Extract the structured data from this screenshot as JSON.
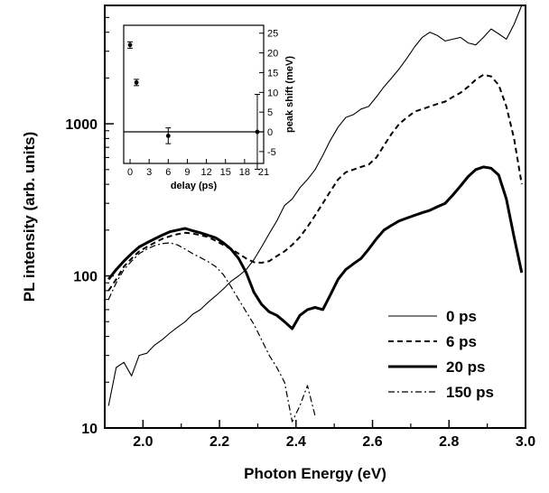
{
  "chart_data": [
    {
      "type": "line",
      "title": "",
      "xlabel": "Photon Energy (eV)",
      "ylabel": "PL intensity (arb. units)",
      "xlim": [
        1.9,
        3.0
      ],
      "ylim": [
        10,
        6000
      ],
      "yscale": "log",
      "xticks": [
        "2.0",
        "2.2",
        "2.4",
        "2.6",
        "2.8",
        "3.0"
      ],
      "yticks": [
        "10",
        "100",
        "1000"
      ],
      "legend_position": "bottom-right",
      "series": [
        {
          "name": "0 ps",
          "style": "thin-solid",
          "x": [
            1.91,
            1.93,
            1.95,
            1.97,
            1.99,
            2.01,
            2.03,
            2.05,
            2.07,
            2.09,
            2.11,
            2.13,
            2.15,
            2.17,
            2.19,
            2.21,
            2.23,
            2.25,
            2.27,
            2.29,
            2.31,
            2.33,
            2.35,
            2.37,
            2.39,
            2.41,
            2.43,
            2.45,
            2.47,
            2.49,
            2.51,
            2.53,
            2.55,
            2.57,
            2.59,
            2.61,
            2.63,
            2.65,
            2.67,
            2.69,
            2.71,
            2.73,
            2.75,
            2.77,
            2.79,
            2.81,
            2.83,
            2.85,
            2.87,
            2.89,
            2.91,
            2.93,
            2.95,
            2.97,
            2.99
          ],
          "y": [
            14,
            25,
            27,
            22,
            30,
            31,
            35,
            38,
            42,
            46,
            50,
            56,
            60,
            67,
            74,
            82,
            92,
            100,
            110,
            128,
            155,
            190,
            230,
            290,
            320,
            380,
            430,
            500,
            620,
            780,
            950,
            1100,
            1150,
            1250,
            1300,
            1500,
            1750,
            2000,
            2300,
            2700,
            3200,
            3700,
            4000,
            3800,
            3500,
            3600,
            3700,
            3400,
            3300,
            3700,
            4200,
            3900,
            3600,
            4500,
            6000
          ]
        },
        {
          "name": "6 ps",
          "style": "dashed",
          "x": [
            1.91,
            1.93,
            1.95,
            1.97,
            1.99,
            2.01,
            2.03,
            2.05,
            2.07,
            2.09,
            2.11,
            2.13,
            2.15,
            2.17,
            2.19,
            2.21,
            2.23,
            2.25,
            2.27,
            2.29,
            2.31,
            2.33,
            2.35,
            2.37,
            2.39,
            2.41,
            2.43,
            2.45,
            2.47,
            2.49,
            2.51,
            2.53,
            2.55,
            2.57,
            2.59,
            2.61,
            2.63,
            2.65,
            2.67,
            2.69,
            2.71,
            2.73,
            2.75,
            2.77,
            2.79,
            2.81,
            2.83,
            2.85,
            2.87,
            2.89,
            2.91,
            2.93,
            2.95,
            2.97,
            2.99
          ],
          "y": [
            80,
            95,
            115,
            130,
            145,
            155,
            165,
            175,
            182,
            188,
            192,
            190,
            185,
            180,
            170,
            160,
            150,
            140,
            130,
            123,
            122,
            125,
            135,
            145,
            160,
            180,
            210,
            250,
            300,
            360,
            430,
            480,
            500,
            520,
            540,
            600,
            720,
            860,
            1000,
            1100,
            1200,
            1250,
            1300,
            1350,
            1400,
            1500,
            1600,
            1750,
            1950,
            2100,
            2050,
            1800,
            1300,
            800,
            400
          ]
        },
        {
          "name": "20 ps",
          "style": "thick-solid",
          "x": [
            1.91,
            1.93,
            1.95,
            1.97,
            1.99,
            2.01,
            2.03,
            2.05,
            2.07,
            2.09,
            2.11,
            2.13,
            2.15,
            2.17,
            2.19,
            2.21,
            2.23,
            2.25,
            2.27,
            2.29,
            2.31,
            2.33,
            2.35,
            2.37,
            2.39,
            2.41,
            2.43,
            2.45,
            2.47,
            2.49,
            2.51,
            2.53,
            2.55,
            2.57,
            2.59,
            2.61,
            2.63,
            2.65,
            2.67,
            2.69,
            2.71,
            2.73,
            2.75,
            2.77,
            2.79,
            2.81,
            2.83,
            2.85,
            2.87,
            2.89,
            2.91,
            2.93,
            2.95,
            2.97,
            2.99
          ],
          "y": [
            95,
            110,
            125,
            140,
            155,
            165,
            175,
            185,
            195,
            200,
            205,
            198,
            192,
            185,
            178,
            165,
            150,
            130,
            105,
            78,
            65,
            58,
            55,
            50,
            45,
            55,
            60,
            62,
            60,
            75,
            95,
            110,
            120,
            130,
            150,
            175,
            200,
            215,
            230,
            240,
            250,
            260,
            270,
            285,
            300,
            340,
            390,
            450,
            500,
            520,
            510,
            460,
            320,
            180,
            105
          ]
        },
        {
          "name": "150 ps",
          "style": "dash-dot",
          "x": [
            1.91,
            1.93,
            1.95,
            1.97,
            1.99,
            2.01,
            2.03,
            2.05,
            2.07,
            2.09,
            2.11,
            2.13,
            2.15,
            2.17,
            2.19,
            2.21,
            2.23,
            2.25,
            2.27,
            2.29,
            2.31,
            2.33,
            2.35,
            2.37,
            2.39,
            2.41,
            2.43,
            2.45
          ],
          "y": [
            70,
            90,
            110,
            125,
            140,
            150,
            158,
            163,
            165,
            160,
            150,
            140,
            132,
            124,
            115,
            102,
            85,
            70,
            58,
            48,
            38,
            30,
            25,
            20,
            11,
            14,
            19,
            12
          ]
        }
      ]
    },
    {
      "type": "scatter",
      "title": "",
      "xlabel": "delay (ps)",
      "ylabel": "peak shift (meV)",
      "xlim": [
        -1,
        21
      ],
      "ylim": [
        -8,
        27
      ],
      "xticks": [
        "0",
        "3",
        "6",
        "9",
        "12",
        "15",
        "18",
        "21"
      ],
      "yticks": [
        "-5",
        "0",
        "5",
        "10",
        "15",
        "20",
        "25"
      ],
      "y_axis_side": "right",
      "reference_line_y": 0,
      "series": [
        {
          "x": [
            0,
            1,
            6,
            20
          ],
          "y": [
            22,
            12.5,
            -1,
            0
          ],
          "error": [
            0.8,
            0.8,
            2.0,
            9.5
          ]
        }
      ]
    }
  ]
}
